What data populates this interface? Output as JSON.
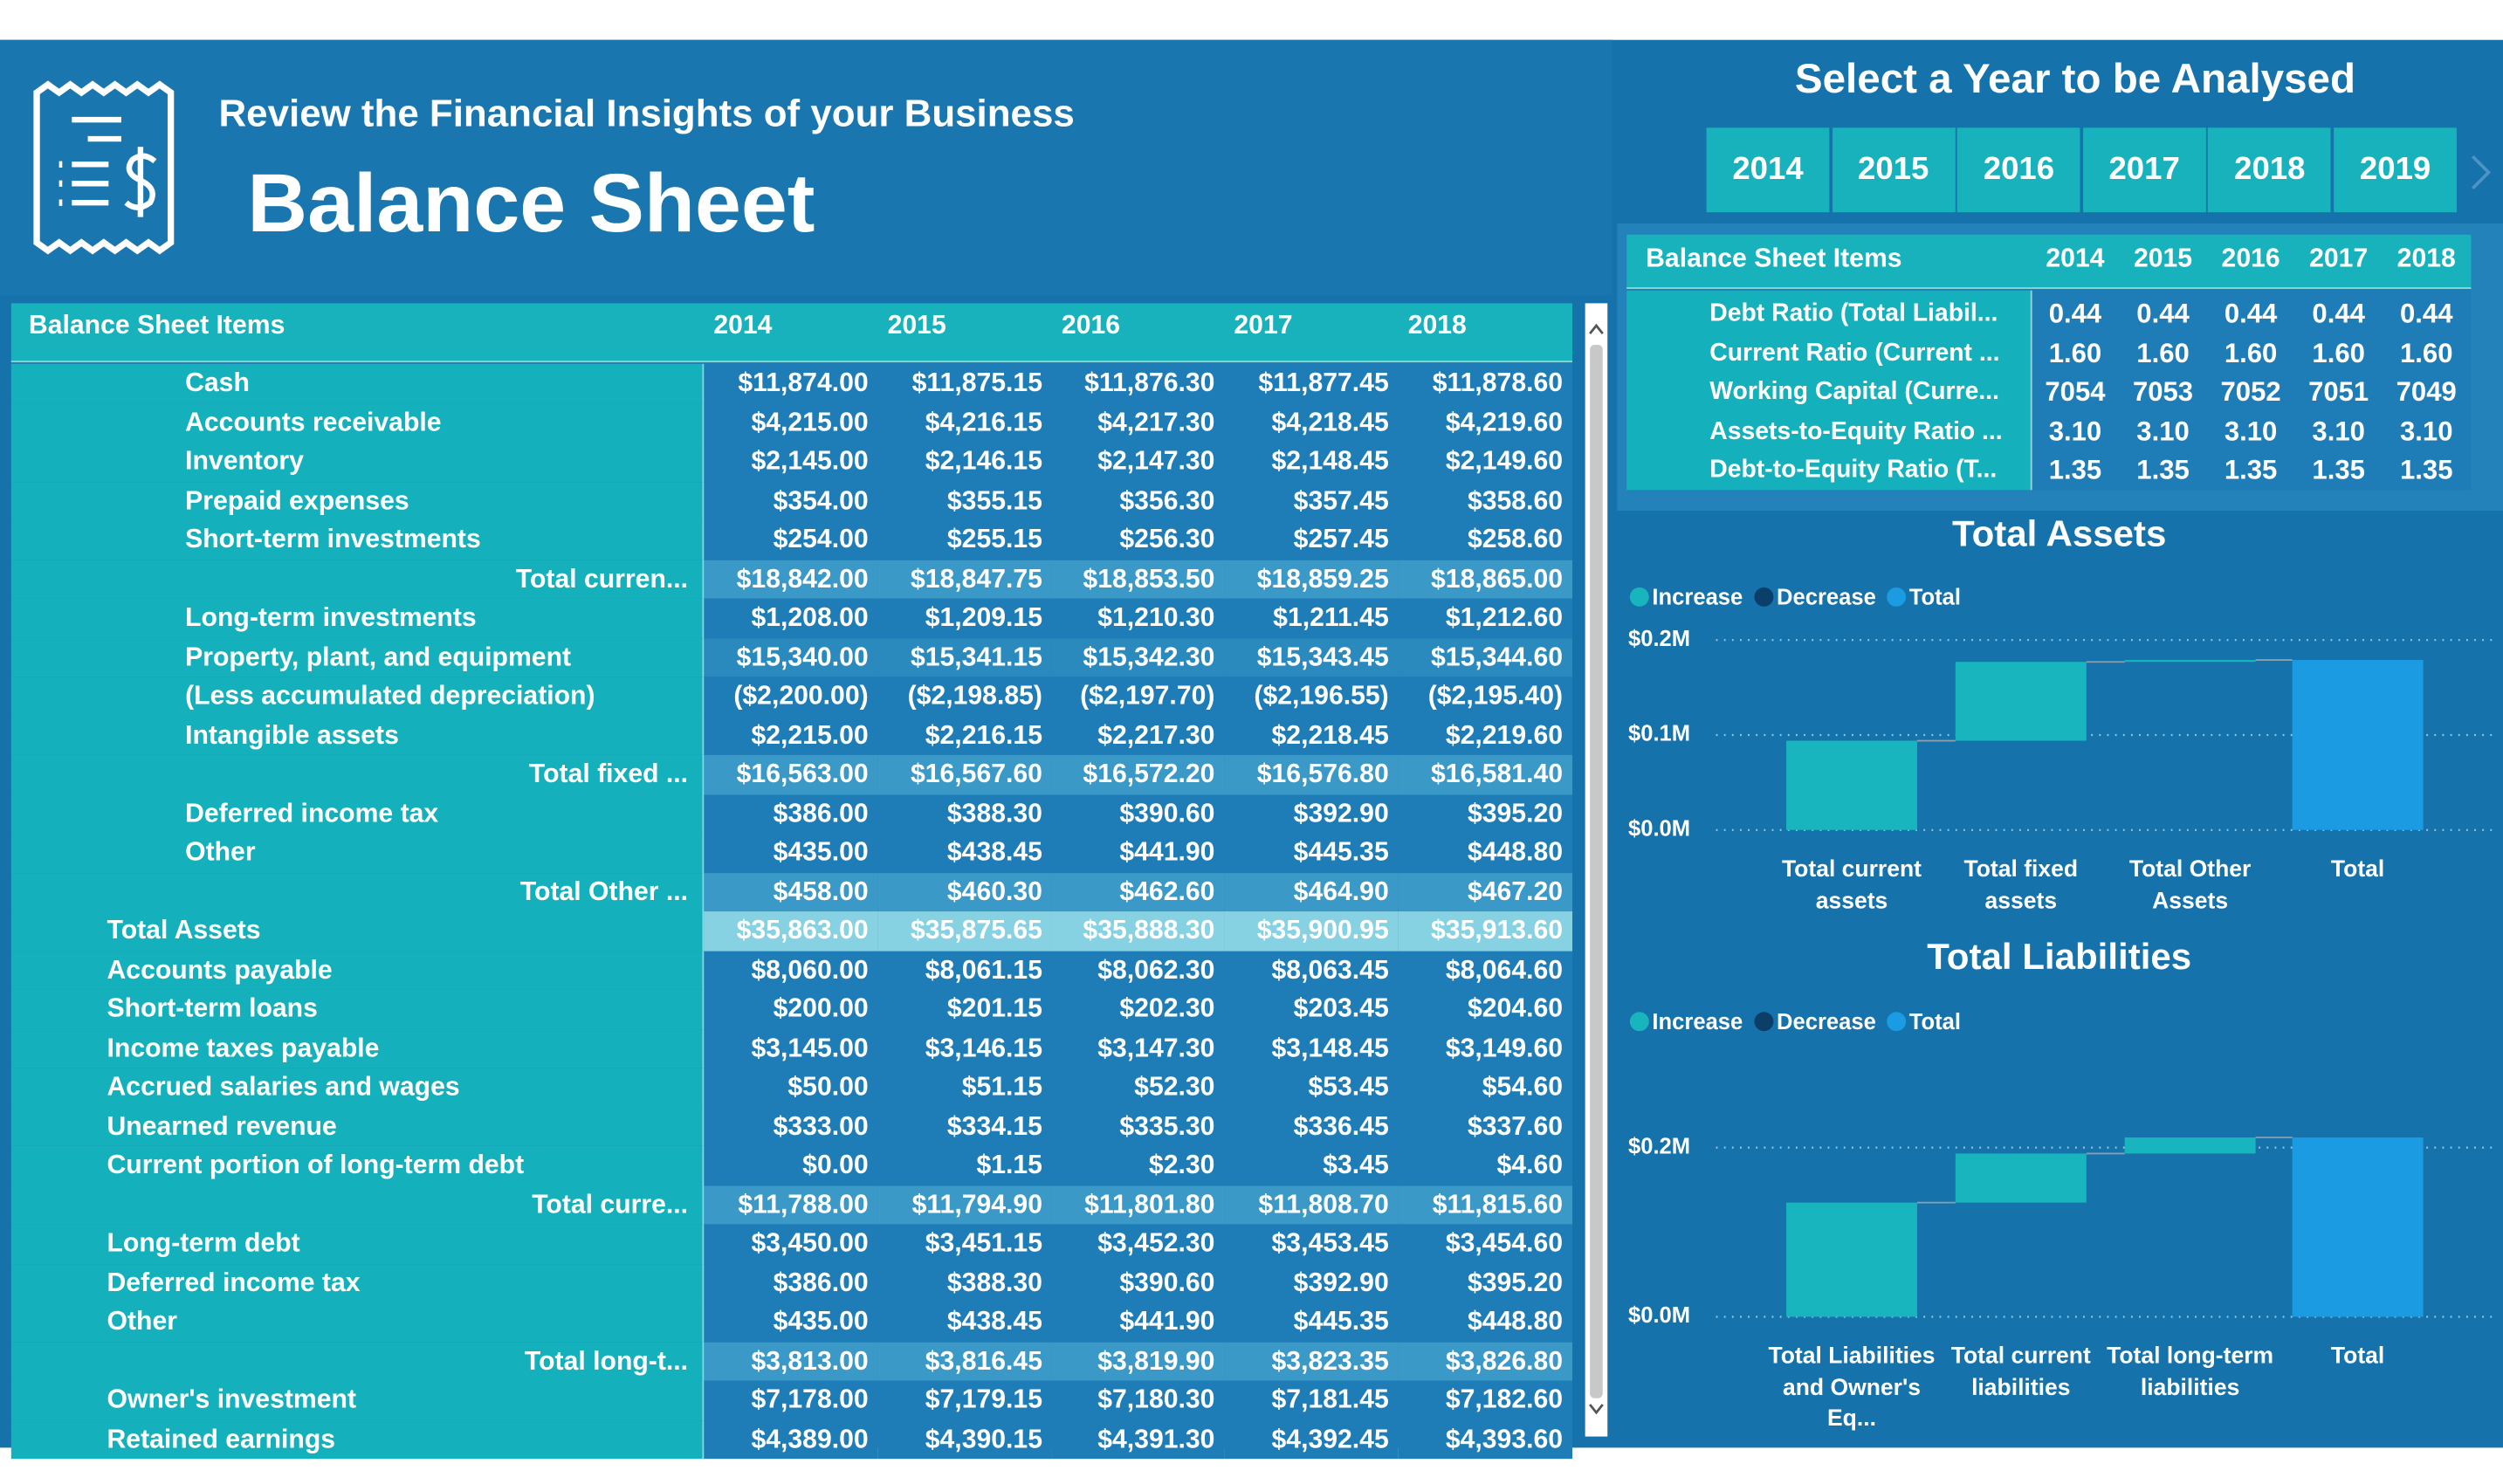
{
  "header": {
    "subtitle": "Review the Financial Insights of your Business",
    "title": "Balance Sheet"
  },
  "slicer": {
    "title": "Select a Year to be Analysed",
    "years": [
      "2014",
      "2015",
      "2016",
      "2017",
      "2018",
      "2019"
    ]
  },
  "main_table": {
    "columns": [
      "Balance Sheet Items",
      "2014",
      "2015",
      "2016",
      "2017",
      "2018"
    ],
    "rows": [
      [
        "Cash",
        "$11,874.00",
        "$11,875.15",
        "$11,876.30",
        "$11,877.45",
        "$11,878.60"
      ],
      [
        "Accounts receivable",
        "$4,215.00",
        "$4,216.15",
        "$4,217.30",
        "$4,218.45",
        "$4,219.60"
      ],
      [
        "Inventory",
        "$2,145.00",
        "$2,146.15",
        "$2,147.30",
        "$2,148.45",
        "$2,149.60"
      ],
      [
        "Prepaid expenses",
        "$354.00",
        "$355.15",
        "$356.30",
        "$357.45",
        "$358.60"
      ],
      [
        "Short-term investments",
        "$254.00",
        "$255.15",
        "$256.30",
        "$257.45",
        "$258.60"
      ],
      [
        "Total curren...",
        "$18,842.00",
        "$18,847.75",
        "$18,853.50",
        "$18,859.25",
        "$18,865.00"
      ],
      [
        "Long-term investments",
        "$1,208.00",
        "$1,209.15",
        "$1,210.30",
        "$1,211.45",
        "$1,212.60"
      ],
      [
        "Property, plant, and equipment",
        "$15,340.00",
        "$15,341.15",
        "$15,342.30",
        "$15,343.45",
        "$15,344.60"
      ],
      [
        "(Less accumulated depreciation)",
        "($2,200.00)",
        "($2,198.85)",
        "($2,197.70)",
        "($2,196.55)",
        "($2,195.40)"
      ],
      [
        "Intangible assets",
        "$2,215.00",
        "$2,216.15",
        "$2,217.30",
        "$2,218.45",
        "$2,219.60"
      ],
      [
        "Total fixed ...",
        "$16,563.00",
        "$16,567.60",
        "$16,572.20",
        "$16,576.80",
        "$16,581.40"
      ],
      [
        "Deferred income tax",
        "$386.00",
        "$388.30",
        "$390.60",
        "$392.90",
        "$395.20"
      ],
      [
        "Other",
        "$435.00",
        "$438.45",
        "$441.90",
        "$445.35",
        "$448.80"
      ],
      [
        "Total Other ...",
        "$458.00",
        "$460.30",
        "$462.60",
        "$464.90",
        "$467.20"
      ],
      [
        "Total Assets",
        "$35,863.00",
        "$35,875.65",
        "$35,888.30",
        "$35,900.95",
        "$35,913.60"
      ],
      [
        "Accounts payable",
        "$8,060.00",
        "$8,061.15",
        "$8,062.30",
        "$8,063.45",
        "$8,064.60"
      ],
      [
        "Short-term loans",
        "$200.00",
        "$201.15",
        "$202.30",
        "$203.45",
        "$204.60"
      ],
      [
        "Income taxes payable",
        "$3,145.00",
        "$3,146.15",
        "$3,147.30",
        "$3,148.45",
        "$3,149.60"
      ],
      [
        "Accrued salaries and wages",
        "$50.00",
        "$51.15",
        "$52.30",
        "$53.45",
        "$54.60"
      ],
      [
        "Unearned revenue",
        "$333.00",
        "$334.15",
        "$335.30",
        "$336.45",
        "$337.60"
      ],
      [
        "Current portion of long-term debt",
        "$0.00",
        "$1.15",
        "$2.30",
        "$3.45",
        "$4.60"
      ],
      [
        "Total curre...",
        "$11,788.00",
        "$11,794.90",
        "$11,801.80",
        "$11,808.70",
        "$11,815.60"
      ],
      [
        "Long-term debt",
        "$3,450.00",
        "$3,451.15",
        "$3,452.30",
        "$3,453.45",
        "$3,454.60"
      ],
      [
        "Deferred income tax",
        "$386.00",
        "$388.30",
        "$390.60",
        "$392.90",
        "$395.20"
      ],
      [
        "Other",
        "$435.00",
        "$438.45",
        "$441.90",
        "$445.35",
        "$448.80"
      ],
      [
        "Total long-t...",
        "$3,813.00",
        "$3,816.45",
        "$3,819.90",
        "$3,823.35",
        "$3,826.80"
      ],
      [
        "Owner's investment",
        "$7,178.00",
        "$7,179.15",
        "$7,180.30",
        "$7,181.45",
        "$7,182.60"
      ],
      [
        "Retained earnings",
        "$4,389.00",
        "$4,390.15",
        "$4,391.30",
        "$4,392.45",
        "$4,393.60"
      ]
    ]
  },
  "ratio_table": {
    "columns": [
      "Balance Sheet Items",
      "2014",
      "2015",
      "2016",
      "2017",
      "2018"
    ],
    "rows": [
      [
        "Debt Ratio (Total Liabil...",
        "0.44",
        "0.44",
        "0.44",
        "0.44",
        "0.44"
      ],
      [
        "Current Ratio (Current ...",
        "1.60",
        "1.60",
        "1.60",
        "1.60",
        "1.60"
      ],
      [
        "Working Capital (Curre...",
        "7054",
        "7053",
        "7052",
        "7051",
        "7049"
      ],
      [
        "Assets-to-Equity Ratio ...",
        "3.10",
        "3.10",
        "3.10",
        "3.10",
        "3.10"
      ],
      [
        "Debt-to-Equity Ratio (T...",
        "1.35",
        "1.35",
        "1.35",
        "1.35",
        "1.35"
      ]
    ]
  },
  "chart_data": [
    {
      "type": "waterfall",
      "title": "Total Assets",
      "legend": [
        {
          "name": "Increase",
          "color": "#19b5be"
        },
        {
          "name": "Decrease",
          "color": "#0c3e6a"
        },
        {
          "name": "Total",
          "color": "#1a9be2"
        }
      ],
      "categories": [
        "Total current assets",
        "Total fixed assets",
        "Total Other Assets",
        "Total"
      ],
      "values": [
        94000,
        83000,
        2000,
        179000
      ],
      "ylim": [
        0,
        220000
      ],
      "yticks": [
        {
          "value": 0,
          "label": "$0.0M"
        },
        {
          "value": 100000,
          "label": "$0.1M"
        },
        {
          "value": 200000,
          "label": "$0.2M"
        }
      ],
      "grid": true
    },
    {
      "type": "waterfall",
      "title": "Total Liabilities",
      "legend": [
        {
          "name": "Increase",
          "color": "#19b5be"
        },
        {
          "name": "Decrease",
          "color": "#0c3e6a"
        },
        {
          "name": "Total",
          "color": "#1a9be2"
        }
      ],
      "categories": [
        "Total Liabilities and Owner's Eq...",
        "Total current liabilities",
        "Total long-term liabilities",
        "Total"
      ],
      "values": [
        135000,
        58000,
        19000,
        212000
      ],
      "ylim": [
        0,
        250000
      ],
      "yticks": [
        {
          "value": 0,
          "label": "$0.0M"
        },
        {
          "value": 200000,
          "label": "$0.2M"
        }
      ],
      "grid": true
    }
  ]
}
